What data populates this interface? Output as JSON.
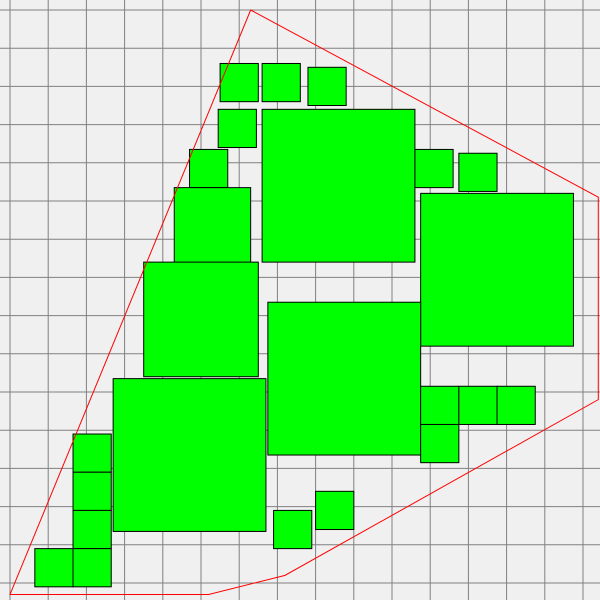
{
  "colors": {
    "background": "#f0f0f0",
    "grid": "#808080",
    "square_fill": "#00ff00",
    "square_stroke": "#000000",
    "polygon_stroke": "#ff0000"
  },
  "chart_data": {
    "type": "diagram",
    "title": "",
    "grid": {
      "x_range": [
        0,
        15.2
      ],
      "y_range": [
        0,
        15.2
      ],
      "step": 1
    },
    "boundary_polygon": [
      [
        6.3,
        0
      ],
      [
        15.4,
        4.9
      ],
      [
        15.4,
        10.2
      ],
      [
        7.2,
        14.8
      ],
      [
        5.2,
        15.3
      ],
      [
        0,
        15.3
      ]
    ],
    "squares": [
      {
        "x": 5.5,
        "y": 1.4,
        "size": 1.0
      },
      {
        "x": 6.6,
        "y": 1.4,
        "size": 1.0
      },
      {
        "x": 7.8,
        "y": 1.5,
        "size": 1.0
      },
      {
        "x": 5.45,
        "y": 2.6,
        "size": 1.0
      },
      {
        "x": 6.6,
        "y": 2.6,
        "size": 4.0
      },
      {
        "x": 4.7,
        "y": 3.65,
        "size": 1.0
      },
      {
        "x": 10.6,
        "y": 3.65,
        "size": 1.0
      },
      {
        "x": 11.75,
        "y": 3.75,
        "size": 1.0
      },
      {
        "x": 4.3,
        "y": 4.65,
        "size": 2.0
      },
      {
        "x": 10.75,
        "y": 4.8,
        "size": 4.0
      },
      {
        "x": 3.5,
        "y": 6.6,
        "size": 3.0
      },
      {
        "x": 6.75,
        "y": 7.65,
        "size": 4.0
      },
      {
        "x": 2.7,
        "y": 9.65,
        "size": 4.0
      },
      {
        "x": 10.75,
        "y": 9.85,
        "size": 1.0
      },
      {
        "x": 11.75,
        "y": 9.85,
        "size": 1.0
      },
      {
        "x": 12.75,
        "y": 9.85,
        "size": 1.0
      },
      {
        "x": 10.75,
        "y": 10.85,
        "size": 1.0
      },
      {
        "x": 1.65,
        "y": 11.1,
        "size": 1.0
      },
      {
        "x": 1.65,
        "y": 12.1,
        "size": 1.0
      },
      {
        "x": 8.0,
        "y": 12.6,
        "size": 1.0
      },
      {
        "x": 1.65,
        "y": 13.1,
        "size": 1.0
      },
      {
        "x": 6.9,
        "y": 13.1,
        "size": 1.0
      },
      {
        "x": 0.65,
        "y": 14.1,
        "size": 1.0
      },
      {
        "x": 1.65,
        "y": 14.1,
        "size": 1.0
      }
    ]
  }
}
